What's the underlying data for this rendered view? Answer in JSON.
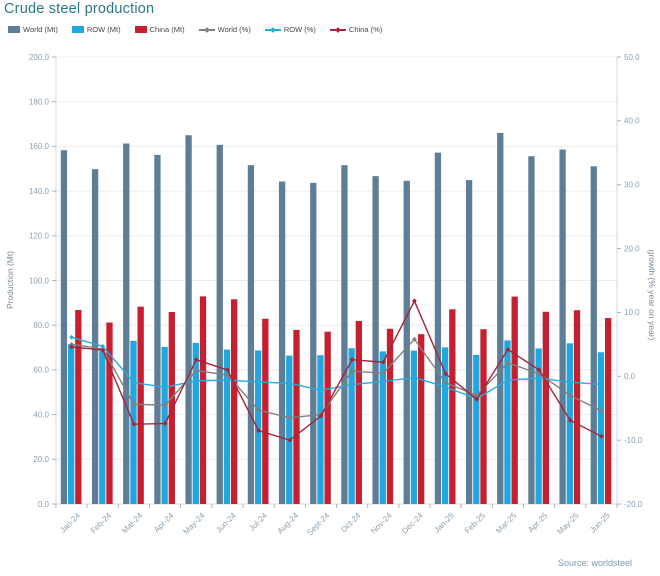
{
  "title": "Crude steel production",
  "source": "Source: worldsteel",
  "legend": [
    {
      "label": "World (Mt)",
      "type": "bar",
      "color": "#5e7e97"
    },
    {
      "label": "ROW (Mt)",
      "type": "bar",
      "color": "#21a7dd"
    },
    {
      "label": "China (Mt)",
      "type": "bar",
      "color": "#c51f30"
    },
    {
      "label": "World (%)",
      "type": "line",
      "color": "#808080"
    },
    {
      "label": "ROW (%)",
      "type": "line",
      "color": "#2aa9de"
    },
    {
      "label": "China (%)",
      "type": "line",
      "color": "#a42439"
    }
  ],
  "chart_data": {
    "type": "bar",
    "subtype": "combo bar+line, dual axis",
    "title": "Crude steel production",
    "categories": [
      "Jan-24",
      "Feb-24",
      "Mar-24",
      "Apr-24",
      "May-24",
      "Jun-24",
      "Jul-24",
      "Aug-24",
      "Sept-24",
      "Oct-24",
      "Nov-24",
      "Dec-24",
      "Jan-25",
      "Feb-25",
      "Mar-25",
      "Apr-25",
      "May-25",
      "Jun-25"
    ],
    "bar_series": [
      {
        "name": "World (Mt)",
        "color": "#5e7e97",
        "values": [
          158.3,
          149.8,
          161.3,
          156.2,
          165.0,
          160.7,
          151.6,
          144.3,
          143.7,
          151.6,
          146.7,
          144.6,
          157.2,
          144.9,
          166.0,
          155.6,
          158.6,
          151.1
        ]
      },
      {
        "name": "ROW (Mt)",
        "color": "#21a7dd",
        "values": [
          71.5,
          68.6,
          73.0,
          70.3,
          72.1,
          69.1,
          68.7,
          66.4,
          66.6,
          69.7,
          68.3,
          68.6,
          70.1,
          66.7,
          73.2,
          69.6,
          71.9,
          67.9
        ]
      },
      {
        "name": "China (Mt)",
        "color": "#c51f30",
        "values": [
          86.8,
          81.2,
          88.3,
          85.9,
          92.9,
          91.6,
          82.9,
          77.9,
          77.1,
          81.9,
          78.4,
          76.0,
          87.1,
          78.2,
          92.8,
          86.0,
          86.7,
          83.2
        ]
      }
    ],
    "line_series": [
      {
        "name": "World (%)",
        "color": "#808080",
        "values": [
          5.0,
          4.3,
          -4.4,
          -4.5,
          0.9,
          0.2,
          -5.3,
          -6.5,
          -6.0,
          0.8,
          0.5,
          5.8,
          -1.0,
          -3.0,
          2.1,
          0.4,
          -3.0,
          -5.4
        ]
      },
      {
        "name": "ROW (%)",
        "color": "#2aa9de",
        "values": [
          6.1,
          4.7,
          -1.0,
          -1.7,
          -0.7,
          -0.6,
          -0.9,
          -1.1,
          -2.2,
          -1.3,
          -0.8,
          -0.2,
          -1.7,
          -3.5,
          -0.6,
          -0.3,
          -0.9,
          -1.3
        ]
      },
      {
        "name": "China (%)",
        "color": "#a42439",
        "values": [
          4.6,
          4.1,
          -7.5,
          -7.4,
          2.6,
          1.0,
          -8.5,
          -10.0,
          -6.2,
          2.6,
          2.2,
          11.8,
          0.4,
          -3.6,
          4.2,
          1.0,
          -6.9,
          -9.4
        ]
      }
    ],
    "left_axis": {
      "label": "Production (Mt)",
      "min": 0,
      "max": 200,
      "step": 20,
      "tick_format": "one-decimal"
    },
    "right_axis": {
      "label": "growth (% year on year)",
      "min": -20,
      "max": 50,
      "step": 10,
      "tick_format": "one-decimal"
    },
    "grid": "horizontal, left-axis ticks",
    "legend_position": "top-left"
  },
  "colors": {
    "title": "#2a7889",
    "grid": "#ebebeb",
    "axis_line": "#d5dadf",
    "tick": "#aab6c0",
    "tick_label": "#8da0b0",
    "axis_title": "#7a8a99",
    "background": "#ffffff"
  }
}
